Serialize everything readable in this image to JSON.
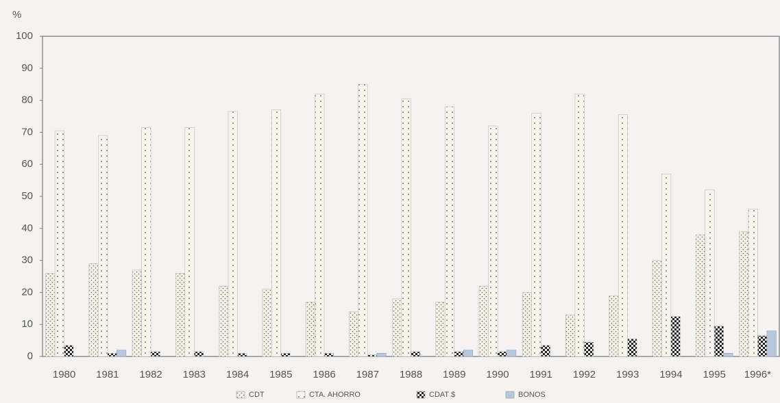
{
  "chart_data": {
    "type": "bar",
    "y_label": "%",
    "categories": [
      "1980",
      "1981",
      "1982",
      "1983",
      "1984",
      "1985",
      "1986",
      "1987",
      "1988",
      "1989",
      "1990",
      "1991",
      "1992",
      "1993",
      "1994",
      "1995",
      "1996*"
    ],
    "series": [
      {
        "name": "CDT",
        "color": "#f6f1e6",
        "pattern": "dots",
        "values": [
          26,
          29,
          27,
          26,
          22,
          21,
          17,
          14,
          18,
          17,
          22,
          20,
          13,
          19,
          30,
          38,
          39
        ]
      },
      {
        "name": "CTA. AHORRO",
        "color": "#f8f5ee",
        "pattern": "sparse-dots",
        "values": [
          70.5,
          69,
          71.5,
          71.5,
          76.5,
          77,
          82,
          85,
          80.5,
          78,
          72,
          76,
          82,
          75.5,
          57,
          52,
          46
        ]
      },
      {
        "name": "CDAT $",
        "color": "#222222",
        "pattern": "checker",
        "values": [
          3.5,
          1,
          1.5,
          1.5,
          1,
          1,
          1,
          0.5,
          1.5,
          1.5,
          1.5,
          3.5,
          4.5,
          5.5,
          12.5,
          9.5,
          6.5
        ]
      },
      {
        "name": "BONOS",
        "color": "#b8c8dc",
        "pattern": "solid",
        "values": [
          0,
          2,
          0,
          0,
          0,
          0,
          0,
          1,
          0,
          2,
          2,
          0,
          0,
          0,
          0,
          1,
          8
        ]
      }
    ],
    "ylim": [
      0,
      100
    ],
    "yticks": [
      0,
      10,
      20,
      30,
      40,
      50,
      60,
      70,
      80,
      90,
      100
    ],
    "legend": "bottom"
  }
}
